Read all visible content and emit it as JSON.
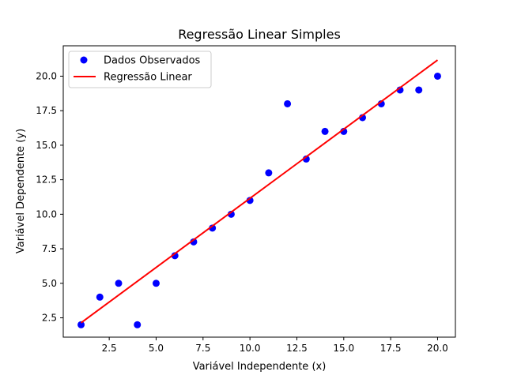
{
  "chart_data": {
    "type": "scatter",
    "title": "Regressão Linear Simples",
    "xlabel": "Variável Independente (x)",
    "ylabel": "Variável Dependente (y)",
    "xlim": [
      0.05,
      20.95
    ],
    "ylim": [
      1.1,
      22.2
    ],
    "x_ticks": [
      2.5,
      5.0,
      7.5,
      10.0,
      12.5,
      15.0,
      17.5,
      20.0
    ],
    "x_tick_labels": [
      "2.5",
      "5.0",
      "7.5",
      "10.0",
      "12.5",
      "15.0",
      "17.5",
      "20.0"
    ],
    "y_ticks": [
      2.5,
      5.0,
      7.5,
      10.0,
      12.5,
      15.0,
      17.5,
      20.0
    ],
    "y_tick_labels": [
      "2.5",
      "5.0",
      "7.5",
      "10.0",
      "12.5",
      "15.0",
      "17.5",
      "20.0"
    ],
    "grid": false,
    "legend_position": "top-left",
    "series": [
      {
        "name": "Dados Observados",
        "kind": "scatter",
        "color": "#0000ff",
        "x": [
          1,
          2,
          3,
          4,
          5,
          6,
          7,
          8,
          9,
          10,
          11,
          12,
          13,
          14,
          15,
          16,
          17,
          18,
          19,
          20
        ],
        "y": [
          2,
          4,
          5,
          2,
          5,
          7,
          8,
          9,
          10,
          11,
          13,
          18,
          14,
          16,
          16,
          17,
          18,
          19,
          19,
          20
        ]
      },
      {
        "name": "Regressão Linear",
        "kind": "line",
        "color": "#ff0000",
        "x": [
          1,
          20
        ],
        "y": [
          2.14,
          21.17
        ]
      }
    ]
  }
}
